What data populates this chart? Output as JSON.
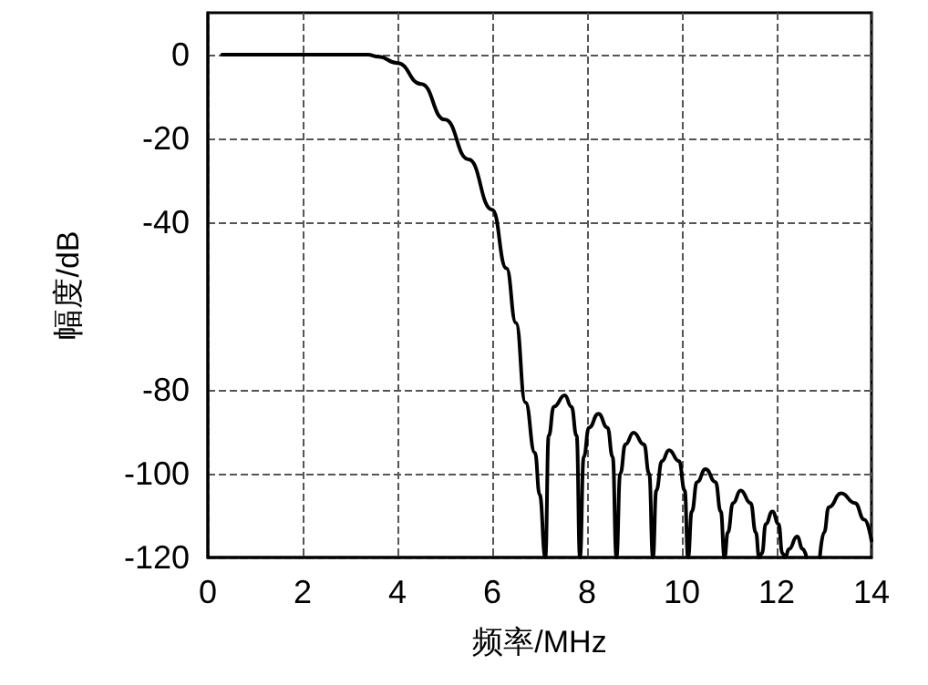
{
  "chart_data": {
    "type": "line",
    "xlabel": "频率/MHz",
    "ylabel": "幅度/dB",
    "series": [
      {
        "color": "#000000",
        "x": [
          0.3,
          3.37,
          3.6,
          4,
          4.5,
          5,
          5.5,
          6,
          6.3,
          6.5,
          6.7,
          6.9,
          7.0,
          7.12,
          7.19,
          7.3,
          7.53,
          7.67,
          7.78,
          7.85,
          7.93,
          8.04,
          8.24,
          8.43,
          8.54,
          8.62,
          8.7,
          8.81,
          8.98,
          9.2,
          9.31,
          9.39,
          9.46,
          9.58,
          9.73,
          9.94,
          10.06,
          10.13,
          10.21,
          10.32,
          10.5,
          10.71,
          10.82,
          10.9,
          10.97,
          11.08,
          11.24,
          11.45,
          11.56,
          11.63,
          11.69,
          11.77,
          11.91,
          12.04,
          12.12,
          12.18,
          12.26,
          12.43,
          12.55,
          12.63,
          12.77,
          12.91,
          13.0,
          13.1,
          13.36,
          13.65,
          13.85,
          14
        ],
        "values": [
          0,
          0,
          -0.5,
          -2,
          -7,
          -15.5,
          -25,
          -37,
          -51,
          -64,
          -83,
          -95,
          -105,
          -120,
          -91,
          -84,
          -81.3,
          -84,
          -91,
          -120,
          -96,
          -89,
          -85.7,
          -89,
          -96,
          -120,
          -100,
          -93,
          -90.2,
          -93,
          -100,
          -120,
          -104,
          -97,
          -94.4,
          -97,
          -104,
          -120,
          -109,
          -102,
          -98.9,
          -102,
          -109,
          -120,
          -114,
          -107,
          -104,
          -107,
          -114,
          -120,
          -119,
          -112,
          -109,
          -112,
          -119,
          -120,
          -118,
          -115,
          -118,
          -120,
          null,
          -120,
          -114,
          -108,
          -104.7,
          -107,
          -111,
          -116
        ]
      }
    ],
    "xlim": [
      0,
      14
    ],
    "xticks": [
      0,
      2,
      4,
      6,
      8,
      10,
      12,
      14
    ],
    "ylim": [
      -120,
      10
    ],
    "yticks": [
      0,
      -20,
      -40,
      -80,
      -100,
      -120
    ],
    "grid": true,
    "marker": "none",
    "line_style": "solid"
  }
}
